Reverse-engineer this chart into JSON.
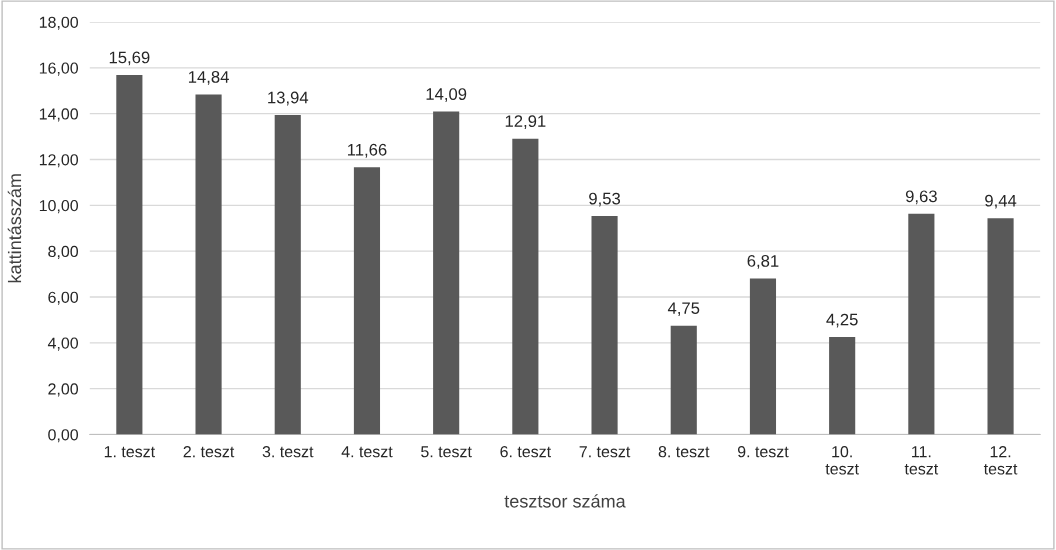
{
  "chart_data": {
    "type": "bar",
    "ylabel": "kattintásszám",
    "xlabel": "tesztsor száma",
    "categories": [
      "1. teszt",
      "2. teszt",
      "3. teszt",
      "4. teszt",
      "5. teszt",
      "6. teszt",
      "7. teszt",
      "8. teszt",
      "9. teszt",
      "10.\nteszt",
      "11.\nteszt",
      "12.\nteszt"
    ],
    "values": [
      15.69,
      14.84,
      13.94,
      11.66,
      14.09,
      12.91,
      9.53,
      4.75,
      6.81,
      4.25,
      9.63,
      9.44
    ],
    "value_labels": [
      "15,69",
      "14,84",
      "13,94",
      "11,66",
      "14,09",
      "12,91",
      "9,53",
      "4,75",
      "6,81",
      "4,25",
      "9,63",
      "9,44"
    ],
    "color": "#595959",
    "ylim": [
      0,
      18
    ],
    "yticks": [
      {
        "value": 0,
        "label": "0,00"
      },
      {
        "value": 2,
        "label": "2,00"
      },
      {
        "value": 4,
        "label": "4,00"
      },
      {
        "value": 6,
        "label": "6,00"
      },
      {
        "value": 8,
        "label": "8,00"
      },
      {
        "value": 10,
        "label": "10,00"
      },
      {
        "value": 12,
        "label": "12,00"
      },
      {
        "value": 14,
        "label": "14,00"
      },
      {
        "value": 16,
        "label": "16,00"
      },
      {
        "value": 18,
        "label": "18,00"
      }
    ],
    "grid": "y",
    "legend": false
  }
}
